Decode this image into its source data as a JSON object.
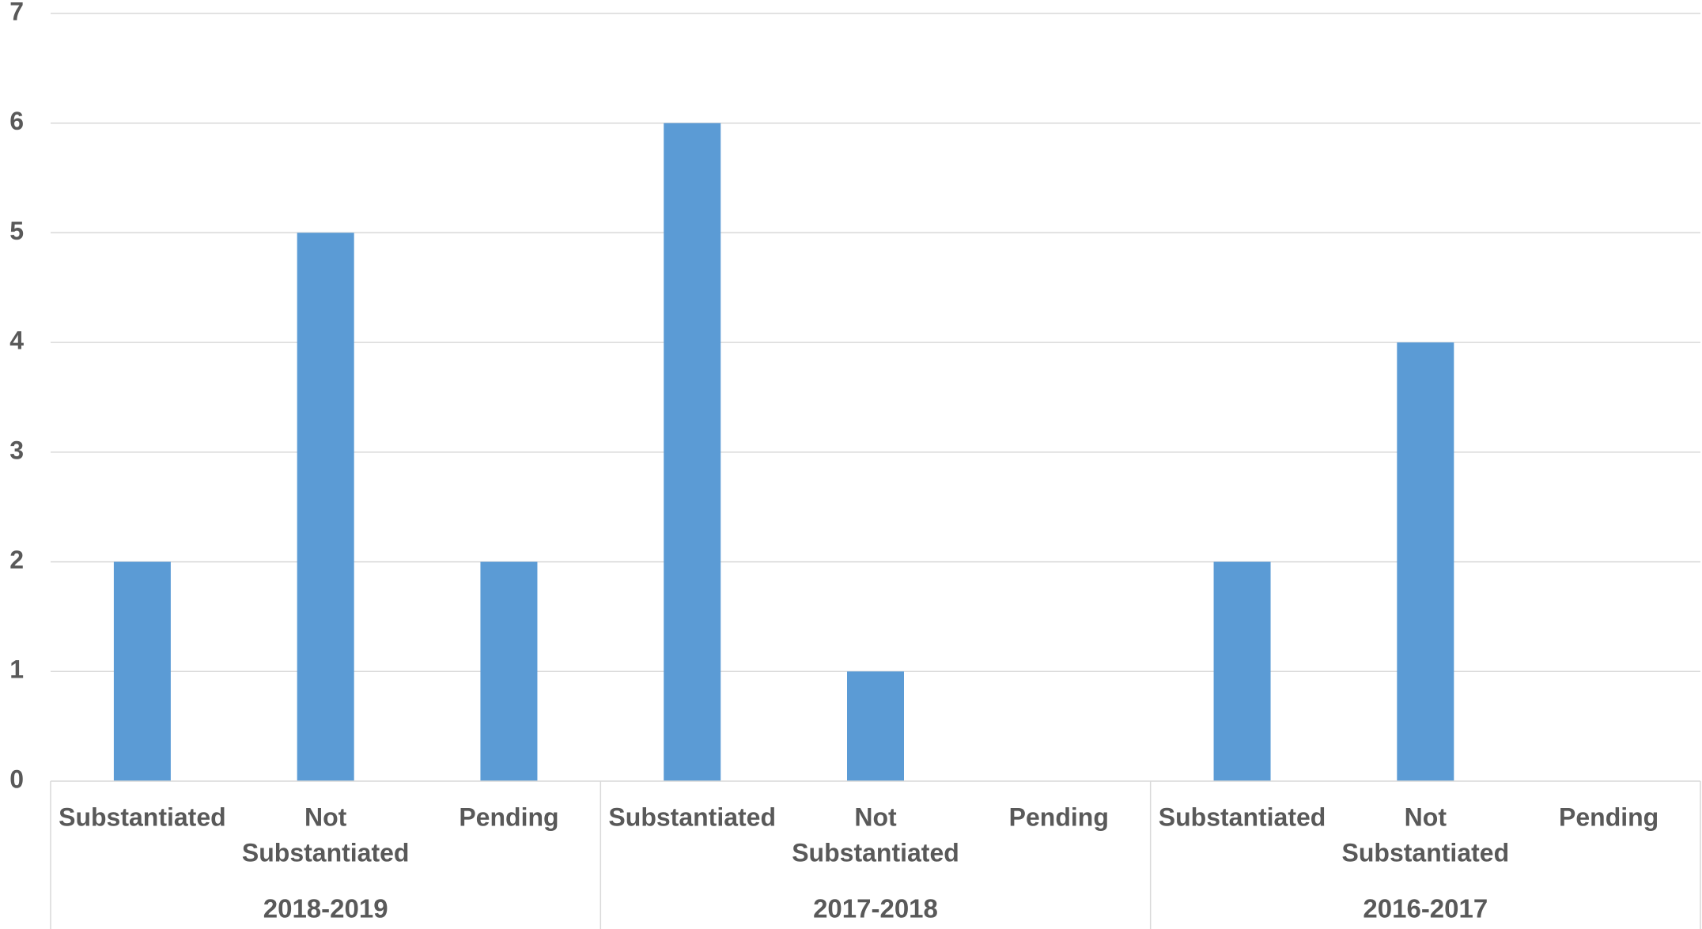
{
  "chart_data": {
    "type": "bar",
    "title": "",
    "xlabel": "",
    "ylabel": "",
    "ylim": [
      0,
      7
    ],
    "yticks": [
      "0",
      "1",
      "2",
      "3",
      "4",
      "5",
      "6",
      "7"
    ],
    "grid": true,
    "legend": "none",
    "bar_color": "#5B9BD5",
    "groups": [
      {
        "label": "2018-2019",
        "categories": [
          {
            "label_lines": [
              "Substantiated"
            ],
            "value": 2
          },
          {
            "label_lines": [
              "Not",
              "Substantiated"
            ],
            "value": 5
          },
          {
            "label_lines": [
              "Pending"
            ],
            "value": 2
          }
        ]
      },
      {
        "label": "2017-2018",
        "categories": [
          {
            "label_lines": [
              "Substantiated"
            ],
            "value": 6
          },
          {
            "label_lines": [
              "Not",
              "Substantiated"
            ],
            "value": 1
          },
          {
            "label_lines": [
              "Pending"
            ],
            "value": 0
          }
        ]
      },
      {
        "label": "2016-2017",
        "categories": [
          {
            "label_lines": [
              "Substantiated"
            ],
            "value": 2
          },
          {
            "label_lines": [
              "Not",
              "Substantiated"
            ],
            "value": 4
          },
          {
            "label_lines": [
              "Pending"
            ],
            "value": 0
          }
        ]
      }
    ]
  }
}
